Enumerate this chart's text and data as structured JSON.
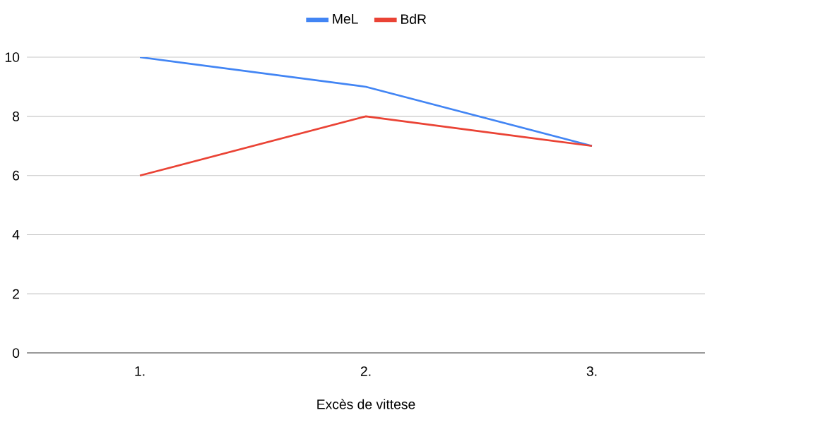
{
  "chart_data": {
    "type": "line",
    "xlabel": "Excès de vittese",
    "categories": [
      "1.",
      "2.",
      "3."
    ],
    "series": [
      {
        "name": "MeL",
        "color": "#4285f4",
        "values": [
          10,
          9,
          7
        ]
      },
      {
        "name": "BdR",
        "color": "#ea4335",
        "values": [
          6,
          8,
          7
        ]
      }
    ],
    "ylim": [
      0,
      10
    ],
    "yticks": [
      0,
      2,
      4,
      6,
      8,
      10
    ],
    "grid": "y",
    "legend": "top",
    "marker": "none",
    "line_style": "solid"
  }
}
